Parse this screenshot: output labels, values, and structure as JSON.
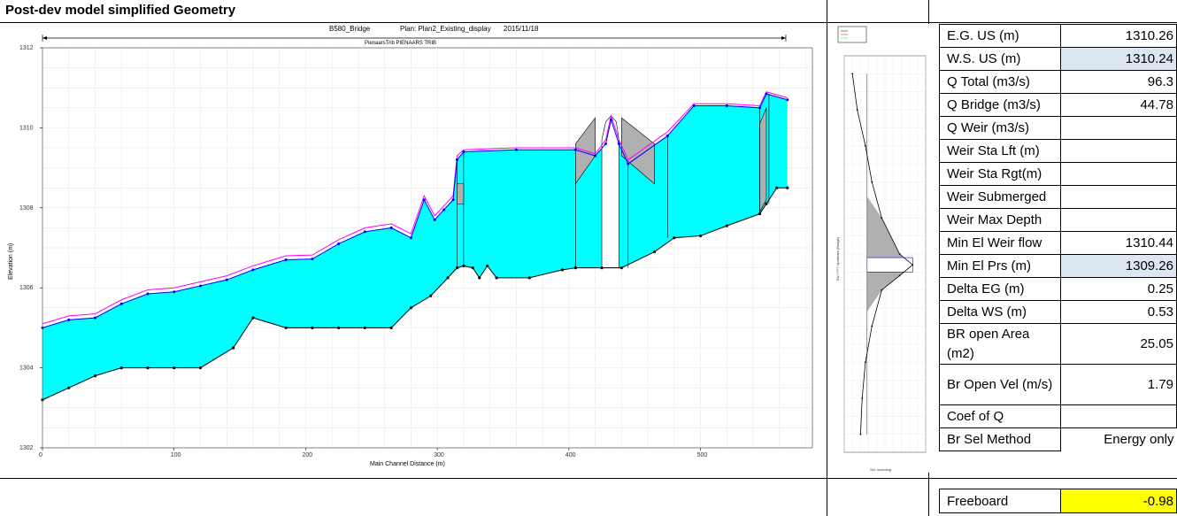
{
  "sheet": {
    "heading": "Post-dev model simplified Geometry"
  },
  "profile_header": {
    "name": "B580_Bridge",
    "plan": "Plan: Plan2_Existing_display",
    "date": "2015/11/18",
    "reach": "PienaarsTrib PIENAARS TRIB"
  },
  "chart_data": [
    {
      "type": "area",
      "xlabel": "Main Channel Distance (m)",
      "ylabel": "Elevation (m)",
      "xlim": [
        0,
        585
      ],
      "ylim": [
        1302,
        1312
      ],
      "xticks": [
        0,
        100,
        200,
        300,
        400,
        500
      ],
      "yticks": [
        1302,
        1304,
        1306,
        1308,
        1310,
        1312
      ],
      "grid": true,
      "colors": {
        "water": "#00ffff",
        "eg_line": "#ff00ff",
        "ws_line": "#0000ff",
        "bed_line": "#000000",
        "structure": "#b0b0b0"
      },
      "water_surface": [
        [
          0,
          1305.0
        ],
        [
          20,
          1305.2
        ],
        [
          40,
          1305.25
        ],
        [
          60,
          1305.6
        ],
        [
          80,
          1305.85
        ],
        [
          100,
          1305.9
        ],
        [
          120,
          1306.05
        ],
        [
          140,
          1306.2
        ],
        [
          160,
          1306.45
        ],
        [
          185,
          1306.7
        ],
        [
          205,
          1306.72
        ],
        [
          225,
          1307.1
        ],
        [
          245,
          1307.4
        ],
        [
          265,
          1307.5
        ],
        [
          280,
          1307.25
        ],
        [
          290,
          1308.2
        ],
        [
          298,
          1307.7
        ],
        [
          305,
          1307.95
        ],
        [
          312,
          1308.2
        ],
        [
          315,
          1309.2
        ],
        [
          320,
          1309.4
        ],
        [
          360,
          1309.45
        ],
        [
          405,
          1309.45
        ],
        [
          420,
          1309.3
        ],
        [
          428,
          1309.6
        ],
        [
          432,
          1310.2
        ],
        [
          438,
          1309.6
        ],
        [
          445,
          1309.1
        ],
        [
          475,
          1309.8
        ],
        [
          495,
          1310.55
        ],
        [
          520,
          1310.55
        ],
        [
          545,
          1310.5
        ],
        [
          550,
          1310.85
        ],
        [
          566,
          1310.7
        ]
      ],
      "energy_grade": [
        [
          0,
          1305.1
        ],
        [
          20,
          1305.3
        ],
        [
          40,
          1305.35
        ],
        [
          60,
          1305.7
        ],
        [
          80,
          1305.95
        ],
        [
          100,
          1306.0
        ],
        [
          120,
          1306.15
        ],
        [
          140,
          1306.3
        ],
        [
          160,
          1306.55
        ],
        [
          185,
          1306.8
        ],
        [
          205,
          1306.82
        ],
        [
          225,
          1307.2
        ],
        [
          245,
          1307.5
        ],
        [
          265,
          1307.6
        ],
        [
          280,
          1307.35
        ],
        [
          290,
          1308.3
        ],
        [
          298,
          1307.8
        ],
        [
          305,
          1308.05
        ],
        [
          312,
          1308.3
        ],
        [
          315,
          1309.3
        ],
        [
          320,
          1309.45
        ],
        [
          360,
          1309.5
        ],
        [
          405,
          1309.5
        ],
        [
          420,
          1309.35
        ],
        [
          428,
          1309.7
        ],
        [
          432,
          1310.3
        ],
        [
          438,
          1309.7
        ],
        [
          445,
          1309.2
        ],
        [
          475,
          1309.9
        ],
        [
          495,
          1310.6
        ],
        [
          520,
          1310.6
        ],
        [
          545,
          1310.55
        ],
        [
          550,
          1310.9
        ],
        [
          566,
          1310.75
        ]
      ],
      "bed": [
        [
          0,
          1303.2
        ],
        [
          20,
          1303.5
        ],
        [
          40,
          1303.8
        ],
        [
          60,
          1304.0
        ],
        [
          80,
          1304.0
        ],
        [
          100,
          1304.0
        ],
        [
          120,
          1304.0
        ],
        [
          145,
          1304.5
        ],
        [
          160,
          1305.25
        ],
        [
          185,
          1305.0
        ],
        [
          205,
          1305.0
        ],
        [
          225,
          1305.0
        ],
        [
          245,
          1305.0
        ],
        [
          265,
          1305.0
        ],
        [
          280,
          1305.5
        ],
        [
          295,
          1305.8
        ],
        [
          308,
          1306.25
        ],
        [
          315,
          1306.5
        ],
        [
          320,
          1306.55
        ],
        [
          327,
          1306.5
        ],
        [
          332,
          1306.25
        ],
        [
          338,
          1306.55
        ],
        [
          345,
          1306.25
        ],
        [
          370,
          1306.25
        ],
        [
          395,
          1306.45
        ],
        [
          405,
          1306.5
        ],
        [
          425,
          1306.5
        ],
        [
          440,
          1306.5
        ],
        [
          465,
          1306.9
        ],
        [
          480,
          1307.25
        ],
        [
          500,
          1307.3
        ],
        [
          520,
          1307.55
        ],
        [
          545,
          1307.85
        ],
        [
          550,
          1308.1
        ],
        [
          558,
          1308.5
        ],
        [
          566,
          1308.5
        ]
      ],
      "bridge_deck": [
        [
          405,
          1309.6
        ],
        [
          420,
          1310.25
        ],
        [
          425,
          1309.7
        ],
        [
          435,
          1309.7
        ],
        [
          440,
          1310.25
        ],
        [
          465,
          1309.6
        ]
      ]
    },
    {
      "type": "line",
      "xlabel": "Sel: incoming",
      "ylabel": "Elv.+??? Upstream (Bridge)",
      "grid": true,
      "series": [
        {
          "values": [
            [
              5,
              1312
            ],
            [
              8,
              1311
            ],
            [
              13,
              1310
            ],
            [
              17,
              1309
            ],
            [
              23,
              1308
            ],
            [
              34,
              1307
            ],
            [
              42,
              1306.7
            ],
            [
              34,
              1306.4
            ],
            [
              23,
              1306
            ],
            [
              17,
              1305
            ],
            [
              13,
              1304
            ],
            [
              11,
              1303
            ],
            [
              10,
              1302
            ]
          ]
        }
      ]
    }
  ],
  "stats": {
    "rows": [
      {
        "label": "E.G. US (m)",
        "value": "1310.26",
        "hl": ""
      },
      {
        "label": "W.S. US (m)",
        "value": "1310.24",
        "hl": "blue"
      },
      {
        "label": "Q Total (m3/s)",
        "value": "96.3",
        "hl": ""
      },
      {
        "label": "Q Bridge (m3/s)",
        "value": "44.78",
        "hl": ""
      },
      {
        "label": "Q Weir (m3/s)",
        "value": "",
        "hl": ""
      },
      {
        "label": "Weir Sta Lft (m)",
        "value": "",
        "hl": ""
      },
      {
        "label": "Weir Sta Rgt(m)",
        "value": "",
        "hl": ""
      },
      {
        "label": "Weir Submerged",
        "value": "",
        "hl": ""
      },
      {
        "label": "Weir Max Depth",
        "value": "",
        "hl": ""
      },
      {
        "label": "Min El Weir flow",
        "value": "1310.44",
        "hl": ""
      },
      {
        "label": "Min El Prs (m)",
        "value": "1309.26",
        "hl": "blue"
      },
      {
        "label": "Delta EG (m)",
        "value": "0.25",
        "hl": ""
      },
      {
        "label": "Delta WS (m)",
        "value": "0.53",
        "hl": ""
      },
      {
        "label": "BR open Area (m2)",
        "value": "25.05",
        "hl": ""
      },
      {
        "label": "Br Open Vel (m/s)",
        "value": "1.79",
        "hl": ""
      },
      {
        "label": "Coef of Q",
        "value": "",
        "hl": ""
      },
      {
        "label": "Br Sel Method",
        "value": "Energy only",
        "hl": ""
      }
    ],
    "freeboard": {
      "label": "Freeboard",
      "value": "-0.98"
    }
  }
}
